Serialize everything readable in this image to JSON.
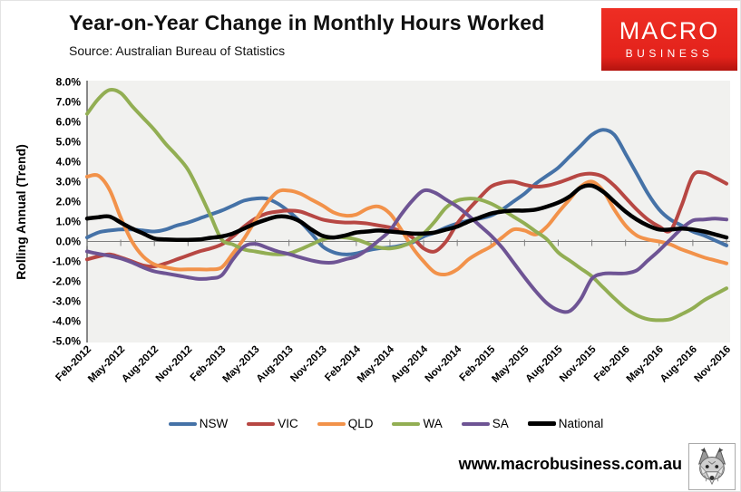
{
  "header": {
    "title": "Year-on-Year Change in Monthly Hours Worked",
    "source": "Source: Australian Bureau of Statistics",
    "logo": {
      "line1": "MACRO",
      "line2": "BUSINESS",
      "bg_color": "#e3221b",
      "text_color": "#ffffff"
    }
  },
  "footer": {
    "url": "www.macrobusiness.com.au",
    "icon": "wolf-sketch-icon"
  },
  "chart_data": {
    "type": "line",
    "title": "Year-on-Year Change in Monthly Hours Worked",
    "ylabel": "Rolling Annual (Trend)",
    "ylim": [
      -5.0,
      8.0
    ],
    "ytick_step": 1.0,
    "yticks": [
      "8.0%",
      "7.0%",
      "6.0%",
      "5.0%",
      "4.0%",
      "3.0%",
      "2.0%",
      "1.0%",
      "0.0%",
      "-1.0%",
      "-2.0%",
      "-3.0%",
      "-4.0%",
      "-5.0%"
    ],
    "grid": false,
    "plot_bg": "#f1f1ef",
    "axis_color": "#7f7f7f",
    "legend_position": "bottom",
    "xtick_every": 3,
    "xticks_shown": [
      "Feb-2012",
      "May-2012",
      "Aug-2012",
      "Nov-2012",
      "Feb-2013",
      "May-2013",
      "Aug-2013",
      "Nov-2013",
      "Feb-2014",
      "May-2014",
      "Aug-2014",
      "Nov-2014",
      "Feb-2015",
      "May-2015",
      "Aug-2015",
      "Nov-2015",
      "Feb-2016",
      "May-2016",
      "Aug-2016",
      "Nov-2016"
    ],
    "x": [
      "Feb-2012",
      "Mar-2012",
      "Apr-2012",
      "May-2012",
      "Jun-2012",
      "Jul-2012",
      "Aug-2012",
      "Sep-2012",
      "Oct-2012",
      "Nov-2012",
      "Dec-2012",
      "Jan-2013",
      "Feb-2013",
      "Mar-2013",
      "Apr-2013",
      "May-2013",
      "Jun-2013",
      "Jul-2013",
      "Aug-2013",
      "Sep-2013",
      "Oct-2013",
      "Nov-2013",
      "Dec-2013",
      "Jan-2014",
      "Feb-2014",
      "Mar-2014",
      "Apr-2014",
      "May-2014",
      "Jun-2014",
      "Jul-2014",
      "Aug-2014",
      "Sep-2014",
      "Oct-2014",
      "Nov-2014",
      "Dec-2014",
      "Jan-2015",
      "Feb-2015",
      "Mar-2015",
      "Apr-2015",
      "May-2015",
      "Jun-2015",
      "Jul-2015",
      "Aug-2015",
      "Sep-2015",
      "Oct-2015",
      "Nov-2015",
      "Dec-2015",
      "Jan-2016",
      "Feb-2016",
      "Mar-2016",
      "Apr-2016",
      "May-2016",
      "Jun-2016",
      "Jul-2016",
      "Aug-2016",
      "Sep-2016",
      "Oct-2016",
      "Nov-2016"
    ],
    "series": [
      {
        "name": "NSW",
        "color": "#4572a7",
        "width": 4,
        "values": [
          0.2,
          0.45,
          0.55,
          0.6,
          0.6,
          0.55,
          0.5,
          0.6,
          0.8,
          0.95,
          1.15,
          1.35,
          1.55,
          1.8,
          2.05,
          2.15,
          2.15,
          1.9,
          1.5,
          1.0,
          0.4,
          -0.25,
          -0.55,
          -0.65,
          -0.6,
          -0.45,
          -0.35,
          -0.3,
          -0.2,
          -0.05,
          0.25,
          0.45,
          0.7,
          0.9,
          1.05,
          1.15,
          1.3,
          1.6,
          2.0,
          2.4,
          2.9,
          3.3,
          3.7,
          4.25,
          4.8,
          5.35,
          5.6,
          5.35,
          4.4,
          3.4,
          2.4,
          1.6,
          1.1,
          0.8,
          0.5,
          0.3,
          0.05,
          -0.2
        ]
      },
      {
        "name": "VIC",
        "color": "#b74743",
        "width": 4,
        "values": [
          -0.9,
          -0.75,
          -0.65,
          -0.8,
          -1.0,
          -1.2,
          -1.25,
          -1.1,
          -0.9,
          -0.7,
          -0.5,
          -0.35,
          -0.15,
          0.25,
          0.75,
          1.15,
          1.4,
          1.5,
          1.55,
          1.5,
          1.3,
          1.1,
          1.0,
          0.95,
          0.95,
          0.9,
          0.8,
          0.7,
          0.5,
          0.2,
          -0.35,
          -0.5,
          0.0,
          0.9,
          1.6,
          2.2,
          2.75,
          2.95,
          3.0,
          2.85,
          2.75,
          2.8,
          2.95,
          3.15,
          3.35,
          3.4,
          3.25,
          2.8,
          2.2,
          1.6,
          1.1,
          0.75,
          0.55,
          1.8,
          3.3,
          3.45,
          3.2,
          2.9
        ]
      },
      {
        "name": "QLD",
        "color": "#f2924a",
        "width": 4,
        "values": [
          3.25,
          3.3,
          2.6,
          1.2,
          0.0,
          -0.75,
          -1.15,
          -1.3,
          -1.4,
          -1.4,
          -1.4,
          -1.4,
          -1.3,
          -0.6,
          0.15,
          1.05,
          1.9,
          2.5,
          2.55,
          2.4,
          2.1,
          1.8,
          1.45,
          1.3,
          1.35,
          1.65,
          1.75,
          1.4,
          0.6,
          -0.3,
          -1.0,
          -1.55,
          -1.65,
          -1.4,
          -0.9,
          -0.55,
          -0.25,
          0.2,
          0.6,
          0.55,
          0.35,
          0.75,
          1.45,
          2.1,
          2.75,
          3.0,
          2.55,
          1.6,
          0.8,
          0.3,
          0.1,
          0.0,
          -0.15,
          -0.4,
          -0.6,
          -0.8,
          -0.95,
          -1.1
        ]
      },
      {
        "name": "WA",
        "color": "#92ae53",
        "width": 4,
        "values": [
          6.4,
          7.15,
          7.6,
          7.45,
          6.8,
          6.2,
          5.6,
          4.9,
          4.3,
          3.6,
          2.5,
          1.3,
          0.1,
          -0.15,
          -0.4,
          -0.5,
          -0.6,
          -0.65,
          -0.6,
          -0.4,
          -0.15,
          0.1,
          0.2,
          0.2,
          0.1,
          -0.1,
          -0.3,
          -0.35,
          -0.25,
          0.0,
          0.4,
          1.0,
          1.7,
          2.05,
          2.15,
          2.1,
          1.9,
          1.6,
          1.25,
          0.9,
          0.5,
          0.1,
          -0.55,
          -0.95,
          -1.35,
          -1.75,
          -2.3,
          -2.85,
          -3.35,
          -3.7,
          -3.9,
          -3.95,
          -3.9,
          -3.65,
          -3.35,
          -2.95,
          -2.65,
          -2.35
        ]
      },
      {
        "name": "SA",
        "color": "#6e5494",
        "width": 4,
        "values": [
          -0.5,
          -0.62,
          -0.72,
          -0.85,
          -1.05,
          -1.3,
          -1.5,
          -1.6,
          -1.7,
          -1.8,
          -1.88,
          -1.85,
          -1.7,
          -0.9,
          -0.25,
          -0.12,
          -0.3,
          -0.5,
          -0.63,
          -0.8,
          -0.95,
          -1.05,
          -1.05,
          -0.9,
          -0.75,
          -0.4,
          0.05,
          0.55,
          1.35,
          2.05,
          2.55,
          2.45,
          2.1,
          1.75,
          1.3,
          0.8,
          0.3,
          -0.3,
          -1.05,
          -1.8,
          -2.5,
          -3.1,
          -3.45,
          -3.5,
          -2.9,
          -1.87,
          -1.62,
          -1.6,
          -1.6,
          -1.45,
          -0.95,
          -0.45,
          0.1,
          0.65,
          1.05,
          1.1,
          1.15,
          1.1
        ]
      },
      {
        "name": "National",
        "color": "#000000",
        "width": 4.5,
        "values": [
          1.15,
          1.22,
          1.25,
          0.95,
          0.65,
          0.4,
          0.15,
          0.1,
          0.08,
          0.08,
          0.1,
          0.18,
          0.25,
          0.4,
          0.65,
          0.9,
          1.1,
          1.25,
          1.22,
          1.0,
          0.6,
          0.28,
          0.2,
          0.3,
          0.45,
          0.5,
          0.55,
          0.5,
          0.45,
          0.4,
          0.4,
          0.45,
          0.6,
          0.75,
          1.0,
          1.2,
          1.4,
          1.5,
          1.55,
          1.55,
          1.6,
          1.75,
          1.95,
          2.25,
          2.7,
          2.8,
          2.5,
          2.0,
          1.5,
          1.1,
          0.8,
          0.6,
          0.6,
          0.65,
          0.6,
          0.5,
          0.35,
          0.2
        ]
      }
    ]
  }
}
